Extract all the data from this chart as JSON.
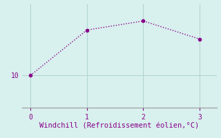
{
  "x": [
    0,
    1,
    2,
    3
  ],
  "y": [
    10,
    13.5,
    14.2,
    12.8
  ],
  "line_color": "#880088",
  "marker": "o",
  "marker_size": 3,
  "bg_color": "#d8f0ee",
  "grid_color": "#b0d4d0",
  "xlabel": "Windchill (Refroidissement éolien,°C)",
  "xlabel_color": "#880088",
  "xlabel_fontsize": 7.5,
  "tick_color": "#880088",
  "tick_fontsize": 7,
  "ytick_labels": [
    "10"
  ],
  "ytick_values": [
    10
  ],
  "xtick_values": [
    0,
    1,
    2,
    3
  ],
  "xlim": [
    -0.15,
    3.3
  ],
  "ylim": [
    7.5,
    15.5
  ],
  "spine_color": "#999999"
}
